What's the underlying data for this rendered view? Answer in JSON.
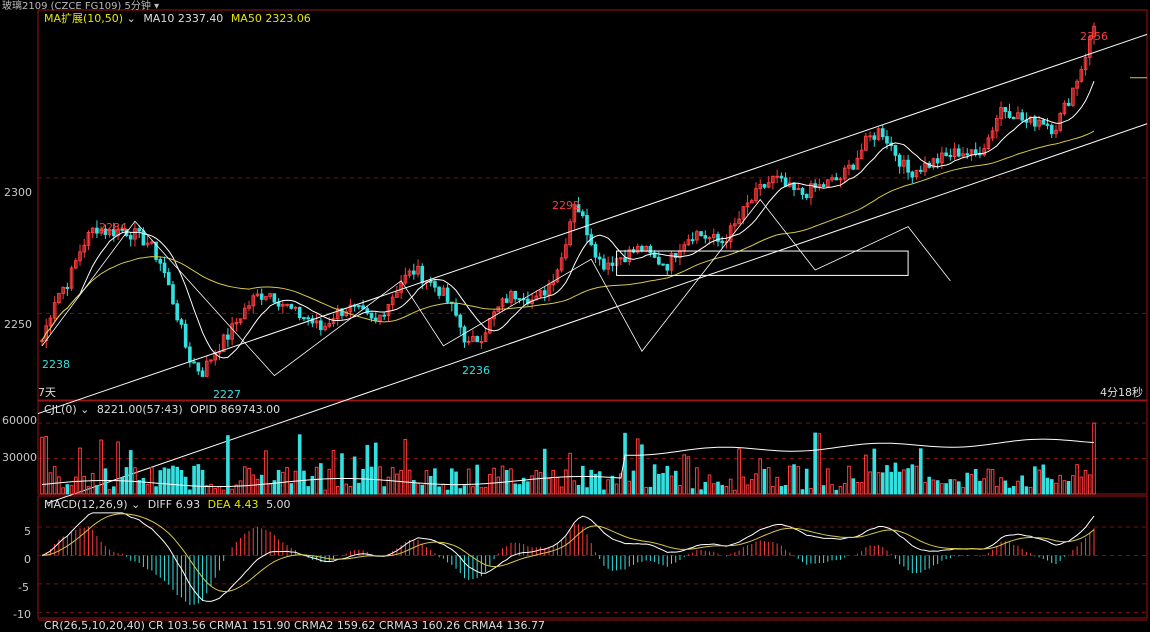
{
  "window": {
    "title_fragment": "玻璃2109 (CZCE FG109) 5分钟",
    "timeframe_button": "5分钟"
  },
  "price_panel": {
    "legend_name": "MA扩展(10,50)",
    "ma10_label": "MA10 2337.40",
    "ma50_label": "MA50 2323.06",
    "y_ticks": [
      "2300",
      "2250"
    ],
    "days_label": "7天",
    "countdown": "4分18秒",
    "annotations": {
      "high1": "2284",
      "low1": "2238",
      "low2": "2227",
      "high2": "2292",
      "low3": "2236",
      "last": "2356"
    }
  },
  "volume_panel": {
    "legend_name": "CJL(0)",
    "vol_label": "8221.00(57:43)",
    "opid_label": "OPID 869743.00",
    "y_ticks": [
      "60000",
      "30000"
    ]
  },
  "macd_panel": {
    "legend_name": "MACD(12,26,9)",
    "diff_label": "DIFF 6.93",
    "dea_label": "DEA 4.43",
    "macd_label": "5.00",
    "y_ticks": [
      "5",
      "0",
      "-5",
      "-10"
    ]
  },
  "bottom_panel": {
    "legend_text": "CR(26,5,10,20,40)  CR 103.56  CRMA1 151.90  CRMA2 159.62  CRMA3 160.26  CRMA4 136.77"
  },
  "colors": {
    "up": "#ff3c3c",
    "down": "#33e0e0",
    "ma10": "#ffffff",
    "ma50": "#d6c84a",
    "channel": "#ffffff",
    "grid": "#7a1010"
  },
  "chart_data": {
    "type": "candlestick",
    "interval": "5分钟",
    "ylim": [
      2218,
      2362
    ],
    "key_points": [
      {
        "label": "2238",
        "value": 2238
      },
      {
        "label": "2284",
        "value": 2284
      },
      {
        "label": "2227",
        "value": 2227
      },
      {
        "label": "2292",
        "value": 2292
      },
      {
        "label": "2236",
        "value": 2236
      },
      {
        "label": "2356",
        "value": 2356
      }
    ],
    "close_path": [
      2240,
      2256,
      2262,
      2275,
      2282,
      2280,
      2281,
      2279,
      2276,
      2268,
      2252,
      2234,
      2228,
      2236,
      2242,
      2250,
      2256,
      2258,
      2254,
      2250,
      2248,
      2244,
      2250,
      2252,
      2250,
      2246,
      2254,
      2262,
      2266,
      2262,
      2258,
      2250,
      2238,
      2242,
      2250,
      2256,
      2258,
      2254,
      2260,
      2270,
      2292,
      2280,
      2268,
      2270,
      2272,
      2274,
      2270,
      2268,
      2276,
      2280,
      2278,
      2276,
      2282,
      2290,
      2296,
      2300,
      2296,
      2294,
      2296,
      2298,
      2300,
      2306,
      2314,
      2318,
      2310,
      2302,
      2304,
      2306,
      2308,
      2310,
      2308,
      2314,
      2326,
      2324,
      2320,
      2322,
      2318,
      2328,
      2340,
      2356
    ],
    "volume_ylim": [
      0,
      66000
    ],
    "macd": {
      "diff": 6.93,
      "dea": 4.43,
      "macd": 5.0,
      "ylim": [
        -11,
        8
      ]
    }
  }
}
